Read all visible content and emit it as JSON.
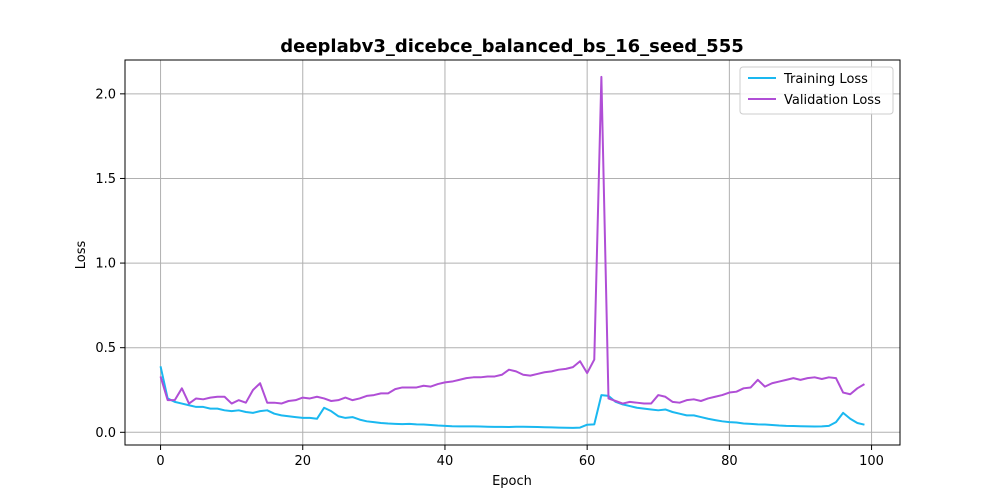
{
  "chart_data": {
    "type": "line",
    "title": "deeplabv3_dicebce_balanced_bs_16_seed_555",
    "xlabel": "Epoch",
    "ylabel": "Loss",
    "xlim": [
      -5,
      104
    ],
    "ylim": [
      -0.075,
      2.2
    ],
    "xticks": [
      0,
      20,
      40,
      60,
      80,
      100
    ],
    "yticks": [
      0.0,
      0.5,
      1.0,
      1.5,
      2.0
    ],
    "xtick_labels": [
      "0",
      "20",
      "40",
      "60",
      "80",
      "100"
    ],
    "ytick_labels": [
      "0.0",
      "0.5",
      "1.0",
      "1.5",
      "2.0"
    ],
    "grid": true,
    "legend_position": "top-right",
    "x": [
      0,
      1,
      2,
      3,
      4,
      5,
      6,
      7,
      8,
      9,
      10,
      11,
      12,
      13,
      14,
      15,
      16,
      17,
      18,
      19,
      20,
      21,
      22,
      23,
      24,
      25,
      26,
      27,
      28,
      29,
      30,
      31,
      32,
      33,
      34,
      35,
      36,
      37,
      38,
      39,
      40,
      41,
      42,
      43,
      44,
      45,
      46,
      47,
      48,
      49,
      50,
      51,
      52,
      53,
      54,
      55,
      56,
      57,
      58,
      59,
      60,
      61,
      62,
      63,
      64,
      65,
      66,
      67,
      68,
      69,
      70,
      71,
      72,
      73,
      74,
      75,
      76,
      77,
      78,
      79,
      80,
      81,
      82,
      83,
      84,
      85,
      86,
      87,
      88,
      89,
      90,
      91,
      92,
      93,
      94,
      95,
      96,
      97,
      98,
      99
    ],
    "series": [
      {
        "name": "Training Loss",
        "color": "#1ab8f0",
        "values": [
          0.39,
          0.2,
          0.18,
          0.17,
          0.16,
          0.15,
          0.15,
          0.14,
          0.14,
          0.13,
          0.125,
          0.13,
          0.12,
          0.115,
          0.125,
          0.13,
          0.11,
          0.1,
          0.095,
          0.09,
          0.085,
          0.085,
          0.08,
          0.145,
          0.125,
          0.095,
          0.085,
          0.09,
          0.075,
          0.065,
          0.06,
          0.055,
          0.052,
          0.05,
          0.048,
          0.05,
          0.047,
          0.046,
          0.043,
          0.04,
          0.038,
          0.036,
          0.035,
          0.035,
          0.035,
          0.034,
          0.033,
          0.032,
          0.032,
          0.031,
          0.033,
          0.033,
          0.032,
          0.031,
          0.03,
          0.029,
          0.028,
          0.027,
          0.026,
          0.028,
          0.045,
          0.047,
          0.22,
          0.215,
          0.18,
          0.165,
          0.155,
          0.145,
          0.14,
          0.135,
          0.13,
          0.135,
          0.12,
          0.11,
          0.1,
          0.1,
          0.09,
          0.08,
          0.072,
          0.065,
          0.06,
          0.058,
          0.052,
          0.05,
          0.047,
          0.046,
          0.043,
          0.04,
          0.038,
          0.037,
          0.036,
          0.035,
          0.034,
          0.035,
          0.038,
          0.06,
          0.115,
          0.08,
          0.055,
          0.045
        ]
      },
      {
        "name": "Validation Loss",
        "color": "#b04ed6",
        "values": [
          0.33,
          0.19,
          0.19,
          0.26,
          0.17,
          0.2,
          0.195,
          0.205,
          0.21,
          0.21,
          0.17,
          0.19,
          0.175,
          0.25,
          0.29,
          0.175,
          0.175,
          0.17,
          0.185,
          0.19,
          0.205,
          0.2,
          0.21,
          0.2,
          0.185,
          0.19,
          0.205,
          0.19,
          0.2,
          0.215,
          0.22,
          0.23,
          0.23,
          0.255,
          0.265,
          0.265,
          0.265,
          0.275,
          0.27,
          0.285,
          0.295,
          0.3,
          0.31,
          0.32,
          0.325,
          0.325,
          0.33,
          0.33,
          0.34,
          0.37,
          0.36,
          0.34,
          0.335,
          0.345,
          0.355,
          0.36,
          0.37,
          0.375,
          0.385,
          0.42,
          0.35,
          0.43,
          2.1,
          0.2,
          0.185,
          0.17,
          0.18,
          0.175,
          0.17,
          0.17,
          0.22,
          0.21,
          0.18,
          0.175,
          0.19,
          0.195,
          0.185,
          0.2,
          0.21,
          0.22,
          0.235,
          0.24,
          0.26,
          0.265,
          0.31,
          0.27,
          0.29,
          0.3,
          0.31,
          0.32,
          0.31,
          0.32,
          0.325,
          0.315,
          0.325,
          0.32,
          0.235,
          0.225,
          0.26,
          0.285
        ]
      }
    ]
  }
}
